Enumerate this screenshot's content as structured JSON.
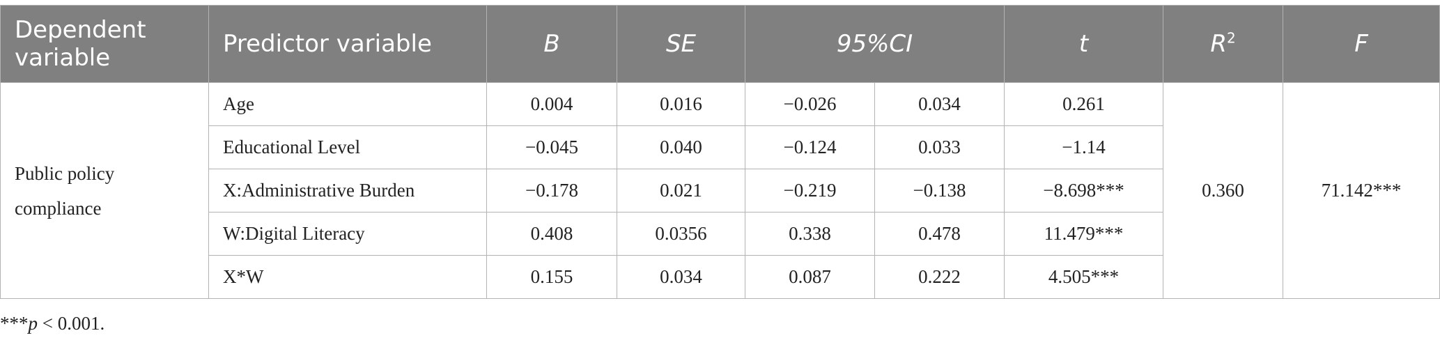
{
  "table": {
    "headers": {
      "dependent": "Dependent variable",
      "predictor": "Predictor variable",
      "b": "B",
      "se": "SE",
      "ci": "95%CI",
      "t": "t",
      "r2_base": "R",
      "r2_sup": "2",
      "f": "F"
    },
    "dependent_variable": "Public policy compliance",
    "r2": "0.360",
    "f": "71.142***",
    "rows": [
      {
        "predictor": "Age",
        "b": "0.004",
        "se": "0.016",
        "ci_low": "−0.026",
        "ci_high": "0.034",
        "t": "0.261"
      },
      {
        "predictor": "Educational Level",
        "b": "−0.045",
        "se": "0.040",
        "ci_low": "−0.124",
        "ci_high": "0.033",
        "t": "−1.14"
      },
      {
        "predictor": "X:Administrative Burden",
        "b": "−0.178",
        "se": "0.021",
        "ci_low": "−0.219",
        "ci_high": "−0.138",
        "t": "−8.698***"
      },
      {
        "predictor": "W:Digital Literacy",
        "b": "0.408",
        "se": "0.0356",
        "ci_low": "0.338",
        "ci_high": "0.478",
        "t": "11.479***"
      },
      {
        "predictor": "X*W",
        "b": "0.155",
        "se": "0.034",
        "ci_low": "0.087",
        "ci_high": "0.222",
        "t": "4.505***"
      }
    ]
  },
  "footnote": {
    "stars": "***",
    "p": "p",
    "rest": " < 0.001."
  }
}
